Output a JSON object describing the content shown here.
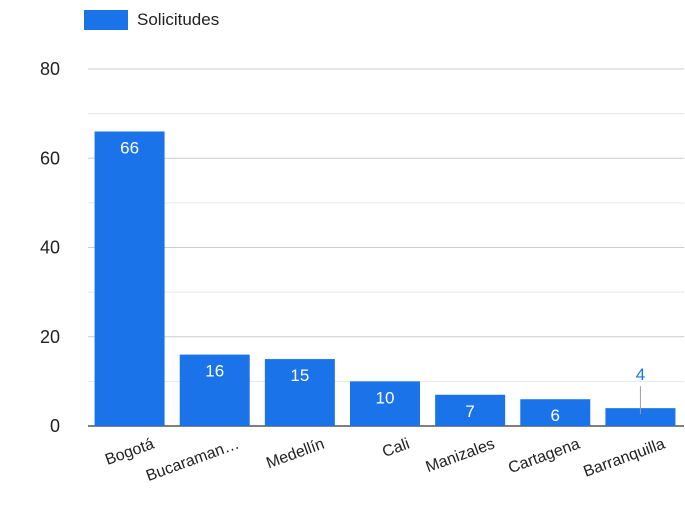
{
  "chart_data": {
    "type": "bar",
    "categories": [
      "Bogotá",
      "Bucaraman…",
      "Medellín",
      "Cali",
      "Manizales",
      "Cartagena",
      "Barranquilla"
    ],
    "series": [
      {
        "name": "Solicitudes",
        "values": [
          66,
          16,
          15,
          10,
          7,
          6,
          4
        ],
        "color": "#1a73e8"
      }
    ],
    "data_labels": [
      "66",
      "16",
      "15",
      "10",
      "7",
      "6",
      "4"
    ],
    "yticks": [
      "0",
      "20",
      "40",
      "60",
      "80"
    ],
    "ylim": [
      0,
      80
    ],
    "grid": true,
    "legend": "top-left",
    "title": "",
    "xlabel": "",
    "ylabel": ""
  }
}
